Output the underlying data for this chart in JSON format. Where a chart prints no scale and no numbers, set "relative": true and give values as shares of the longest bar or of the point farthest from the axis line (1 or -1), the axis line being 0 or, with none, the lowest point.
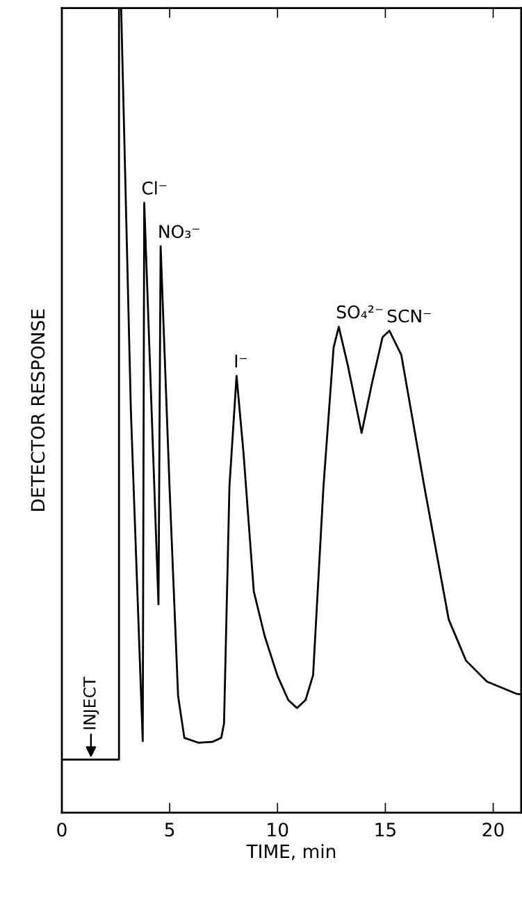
{
  "chart_data": {
    "type": "line",
    "relative": true,
    "xlabel": "TIME, min",
    "ylabel": "DETECTOR RESPONSE",
    "xlim": [
      0,
      21.3
    ],
    "xticks": [
      0,
      5,
      10,
      15,
      20
    ],
    "grid": false,
    "legend": false,
    "marker": "none",
    "line_style": "solid",
    "x": [
      0,
      0.5,
      1.0,
      1.5,
      2.0,
      2.65,
      2.65,
      2.75,
      3.2,
      3.75,
      3.82,
      4.48,
      4.58,
      5.0,
      5.39,
      5.68,
      6.32,
      6.97,
      7.39,
      7.52,
      7.77,
      8.1,
      8.42,
      8.9,
      9.4,
      10.0,
      10.5,
      10.9,
      11.3,
      11.65,
      12.13,
      12.6,
      12.84,
      13.26,
      13.9,
      14.39,
      14.87,
      15.19,
      15.74,
      16.81,
      17.94,
      18.74,
      19.71,
      21.06,
      21.3
    ],
    "series": [
      {
        "color": "#000000",
        "values": [
          0.066,
          0.066,
          0.066,
          0.066,
          0.066,
          0.066,
          1.0,
          1.0,
          0.5,
          0.089,
          0.758,
          0.259,
          0.704,
          0.4,
          0.145,
          0.093,
          0.087,
          0.088,
          0.093,
          0.111,
          0.405,
          0.543,
          0.448,
          0.275,
          0.22,
          0.17,
          0.14,
          0.13,
          0.14,
          0.171,
          0.405,
          0.578,
          0.604,
          0.556,
          0.472,
          0.535,
          0.591,
          0.599,
          0.569,
          0.405,
          0.24,
          0.189,
          0.163,
          0.148,
          0.147
        ]
      }
    ],
    "annotations": [
      {
        "text": "INJECT",
        "x": 1.35,
        "y": 0.066
      },
      {
        "text": "Cl⁻",
        "x": 3.82,
        "y": 0.758
      },
      {
        "text": "NO₃⁻",
        "x": 4.58,
        "y": 0.704
      },
      {
        "text": "I⁻",
        "x": 8.1,
        "y": 0.543
      },
      {
        "text": "SO₄²⁻",
        "x": 12.84,
        "y": 0.604
      },
      {
        "text": "SCN⁻",
        "x": 15.19,
        "y": 0.599
      }
    ]
  }
}
